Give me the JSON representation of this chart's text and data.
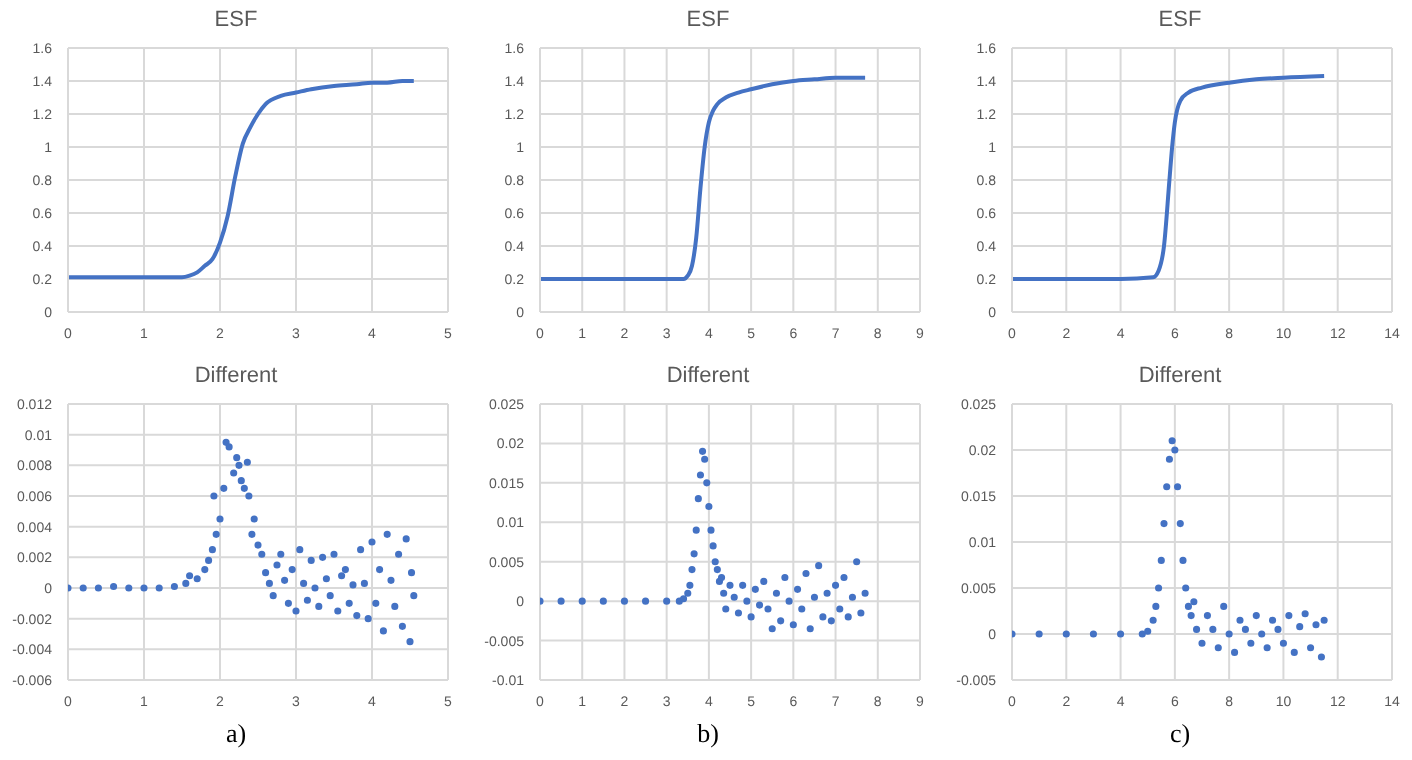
{
  "chart_data": [
    {
      "type": "line",
      "title": "ESF",
      "grid": true,
      "xlim": [
        0,
        5
      ],
      "xticks": [
        0,
        1,
        2,
        3,
        4,
        5
      ],
      "ylim": [
        0,
        1.6
      ],
      "yticks": [
        0,
        0.2,
        0.4,
        0.6,
        0.8,
        1,
        1.2,
        1.4,
        1.6
      ],
      "series": [
        {
          "color": "#4472c4",
          "x": [
            0,
            0.5,
            1,
            1.5,
            1.6,
            1.7,
            1.8,
            1.9,
            2.0,
            2.1,
            2.2,
            2.3,
            2.4,
            2.5,
            2.6,
            2.8,
            3.0,
            3.2,
            3.5,
            3.8,
            4.0,
            4.2,
            4.4,
            4.55
          ],
          "values": [
            0.21,
            0.21,
            0.21,
            0.21,
            0.22,
            0.24,
            0.28,
            0.32,
            0.42,
            0.58,
            0.82,
            1.02,
            1.12,
            1.2,
            1.26,
            1.31,
            1.33,
            1.35,
            1.37,
            1.38,
            1.39,
            1.39,
            1.4,
            1.4
          ]
        }
      ]
    },
    {
      "type": "line",
      "title": "ESF",
      "grid": true,
      "xlim": [
        0,
        9
      ],
      "xticks": [
        0,
        1,
        2,
        3,
        4,
        5,
        6,
        7,
        8,
        9
      ],
      "ylim": [
        0,
        1.6
      ],
      "yticks": [
        0,
        0.2,
        0.4,
        0.6,
        0.8,
        1,
        1.2,
        1.4,
        1.6
      ],
      "series": [
        {
          "color": "#4472c4",
          "x": [
            0,
            1,
            2,
            3,
            3.4,
            3.5,
            3.6,
            3.7,
            3.8,
            3.9,
            4.0,
            4.1,
            4.2,
            4.4,
            4.7,
            5,
            5.5,
            6,
            6.5,
            7,
            7.7
          ],
          "values": [
            0.2,
            0.2,
            0.2,
            0.2,
            0.2,
            0.22,
            0.28,
            0.45,
            0.75,
            1.0,
            1.15,
            1.22,
            1.26,
            1.3,
            1.33,
            1.35,
            1.38,
            1.4,
            1.41,
            1.42,
            1.42
          ]
        }
      ]
    },
    {
      "type": "line",
      "title": "ESF",
      "grid": true,
      "xlim": [
        0,
        14
      ],
      "xticks": [
        0,
        2,
        4,
        6,
        8,
        10,
        12,
        14
      ],
      "ylim": [
        0,
        1.6
      ],
      "yticks": [
        0,
        0.2,
        0.4,
        0.6,
        0.8,
        1,
        1.2,
        1.4,
        1.6
      ],
      "series": [
        {
          "color": "#4472c4",
          "x": [
            0,
            2,
            4,
            5.2,
            5.4,
            5.6,
            5.8,
            5.9,
            6.0,
            6.2,
            6.5,
            7,
            8,
            9,
            10,
            11.5
          ],
          "values": [
            0.2,
            0.2,
            0.2,
            0.21,
            0.25,
            0.4,
            0.8,
            1.0,
            1.15,
            1.28,
            1.33,
            1.36,
            1.39,
            1.41,
            1.42,
            1.43
          ]
        }
      ]
    },
    {
      "type": "scatter",
      "title": "Different",
      "grid": true,
      "marker": "circle",
      "annotations": [
        "a)"
      ],
      "xlim": [
        0,
        5
      ],
      "xticks": [
        0,
        1,
        2,
        3,
        4,
        5
      ],
      "ylim": [
        -0.006,
        0.012
      ],
      "yticks": [
        -0.006,
        -0.004,
        -0.002,
        0,
        0.002,
        0.004,
        0.006,
        0.008,
        0.01,
        0.012
      ],
      "series": [
        {
          "color": "#4472c4",
          "x": [
            0,
            0.2,
            0.4,
            0.6,
            0.8,
            1.0,
            1.2,
            1.4,
            1.55,
            1.6,
            1.7,
            1.8,
            1.85,
            1.9,
            1.92,
            1.95,
            2.0,
            2.05,
            2.08,
            2.12,
            2.18,
            2.22,
            2.25,
            2.28,
            2.32,
            2.36,
            2.38,
            2.42,
            2.45,
            2.5,
            2.55,
            2.6,
            2.65,
            2.7,
            2.75,
            2.8,
            2.85,
            2.9,
            2.95,
            3.0,
            3.05,
            3.1,
            3.15,
            3.2,
            3.25,
            3.3,
            3.35,
            3.4,
            3.45,
            3.5,
            3.55,
            3.6,
            3.65,
            3.7,
            3.75,
            3.8,
            3.85,
            3.9,
            3.95,
            4.0,
            4.05,
            4.1,
            4.15,
            4.2,
            4.25,
            4.3,
            4.35,
            4.4,
            4.45,
            4.5,
            4.52,
            4.55
          ],
          "values": [
            0,
            0,
            0,
            0.0001,
            0,
            0,
            0,
            0.0001,
            0.0003,
            0.0008,
            0.0006,
            0.0012,
            0.0018,
            0.0025,
            0.006,
            0.0035,
            0.0045,
            0.0065,
            0.0095,
            0.0092,
            0.0075,
            0.0085,
            0.008,
            0.007,
            0.0065,
            0.0082,
            0.006,
            0.0035,
            0.0045,
            0.0028,
            0.0022,
            0.001,
            0.0003,
            -0.0005,
            0.0015,
            0.0022,
            0.0005,
            -0.001,
            0.0012,
            -0.0015,
            0.0025,
            0.0003,
            -0.0008,
            0.0018,
            0,
            -0.0012,
            0.002,
            0.0006,
            -0.0005,
            0.0022,
            -0.0015,
            0.0008,
            0.0012,
            -0.001,
            0.0002,
            -0.0018,
            0.0025,
            0.0003,
            -0.002,
            0.003,
            -0.001,
            0.0012,
            -0.0028,
            0.0035,
            0.0005,
            -0.0012,
            0.0022,
            -0.0025,
            0.0032,
            -0.0035,
            0.001,
            -0.0005
          ]
        }
      ]
    },
    {
      "type": "scatter",
      "title": "Different",
      "grid": true,
      "marker": "circle",
      "annotations": [
        "b)"
      ],
      "xlim": [
        0,
        9
      ],
      "xticks": [
        0,
        1,
        2,
        3,
        4,
        5,
        6,
        7,
        8,
        9
      ],
      "ylim": [
        -0.01,
        0.025
      ],
      "yticks": [
        -0.01,
        -0.005,
        0,
        0.005,
        0.01,
        0.015,
        0.02,
        0.025
      ],
      "series": [
        {
          "color": "#4472c4",
          "x": [
            0,
            0.5,
            1,
            1.5,
            2,
            2.5,
            3,
            3.3,
            3.4,
            3.5,
            3.55,
            3.6,
            3.65,
            3.7,
            3.75,
            3.8,
            3.85,
            3.9,
            3.95,
            4.0,
            4.05,
            4.1,
            4.15,
            4.2,
            4.25,
            4.3,
            4.35,
            4.4,
            4.5,
            4.6,
            4.7,
            4.8,
            4.9,
            5.0,
            5.1,
            5.2,
            5.3,
            5.4,
            5.5,
            5.6,
            5.7,
            5.8,
            5.9,
            6.0,
            6.1,
            6.2,
            6.3,
            6.4,
            6.5,
            6.6,
            6.7,
            6.8,
            6.9,
            7.0,
            7.1,
            7.2,
            7.3,
            7.4,
            7.5,
            7.6,
            7.7
          ],
          "values": [
            0,
            0,
            0,
            0,
            0,
            0,
            0,
            0,
            0.0003,
            0.001,
            0.002,
            0.004,
            0.006,
            0.009,
            0.013,
            0.016,
            0.019,
            0.018,
            0.015,
            0.012,
            0.009,
            0.007,
            0.005,
            0.004,
            0.0025,
            0.003,
            0.001,
            -0.001,
            0.002,
            0.0005,
            -0.0015,
            0.002,
            0,
            -0.002,
            0.0015,
            -0.0005,
            0.0025,
            -0.001,
            -0.0035,
            0.001,
            -0.0025,
            0.003,
            0,
            -0.003,
            0.0015,
            -0.001,
            0.0035,
            -0.0035,
            0.0005,
            0.0045,
            -0.002,
            0.001,
            -0.0025,
            0.002,
            -0.001,
            0.003,
            -0.002,
            0.0005,
            0.005,
            -0.0015,
            0.001
          ]
        }
      ]
    },
    {
      "type": "scatter",
      "title": "Different",
      "grid": true,
      "marker": "circle",
      "annotations": [
        "c)"
      ],
      "xlim": [
        0,
        14
      ],
      "xticks": [
        0,
        2,
        4,
        6,
        8,
        10,
        12,
        14
      ],
      "ylim": [
        -0.005,
        0.025
      ],
      "yticks": [
        -0.005,
        0,
        0.005,
        0.01,
        0.015,
        0.02,
        0.025
      ],
      "series": [
        {
          "color": "#4472c4",
          "x": [
            0,
            1,
            2,
            3,
            4,
            4.8,
            5.0,
            5.2,
            5.3,
            5.4,
            5.5,
            5.6,
            5.7,
            5.8,
            5.9,
            6.0,
            6.1,
            6.2,
            6.3,
            6.4,
            6.5,
            6.6,
            6.7,
            6.8,
            7.0,
            7.2,
            7.4,
            7.6,
            7.8,
            8.0,
            8.2,
            8.4,
            8.6,
            8.8,
            9.0,
            9.2,
            9.4,
            9.6,
            9.8,
            10.0,
            10.2,
            10.4,
            10.6,
            10.8,
            11.0,
            11.2,
            11.4,
            11.5
          ],
          "values": [
            0,
            0,
            0,
            0,
            0,
            0,
            0.0003,
            0.0015,
            0.003,
            0.005,
            0.008,
            0.012,
            0.016,
            0.019,
            0.021,
            0.02,
            0.016,
            0.012,
            0.008,
            0.005,
            0.003,
            0.002,
            0.0035,
            0.0005,
            -0.001,
            0.002,
            0.0005,
            -0.0015,
            0.003,
            0,
            -0.002,
            0.0015,
            0.0005,
            -0.001,
            0.002,
            0,
            -0.0015,
            0.0015,
            0.0005,
            -0.001,
            0.002,
            -0.002,
            0.0008,
            0.0022,
            -0.0015,
            0.001,
            -0.0025,
            0.0015
          ]
        }
      ]
    }
  ]
}
